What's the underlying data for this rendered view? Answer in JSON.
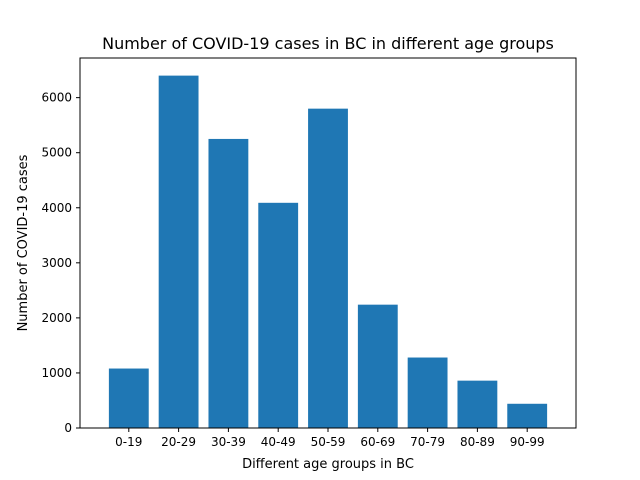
{
  "chart_data": {
    "type": "bar",
    "title": "Number of COVID-19 cases in BC in different age groups",
    "xlabel": "Different age groups in BC",
    "ylabel": "Number of COVID-19 cases",
    "categories": [
      "0-19",
      "20-29",
      "30-39",
      "40-49",
      "50-59",
      "60-69",
      "70-79",
      "80-89",
      "90-99"
    ],
    "values": [
      1080,
      6400,
      5250,
      4090,
      5800,
      2240,
      1280,
      860,
      440
    ],
    "ylim": [
      0,
      6720
    ],
    "yticks": [
      0,
      1000,
      2000,
      3000,
      4000,
      5000,
      6000
    ],
    "grid": false,
    "legend": "none",
    "bar_color": "#1f77b4"
  }
}
